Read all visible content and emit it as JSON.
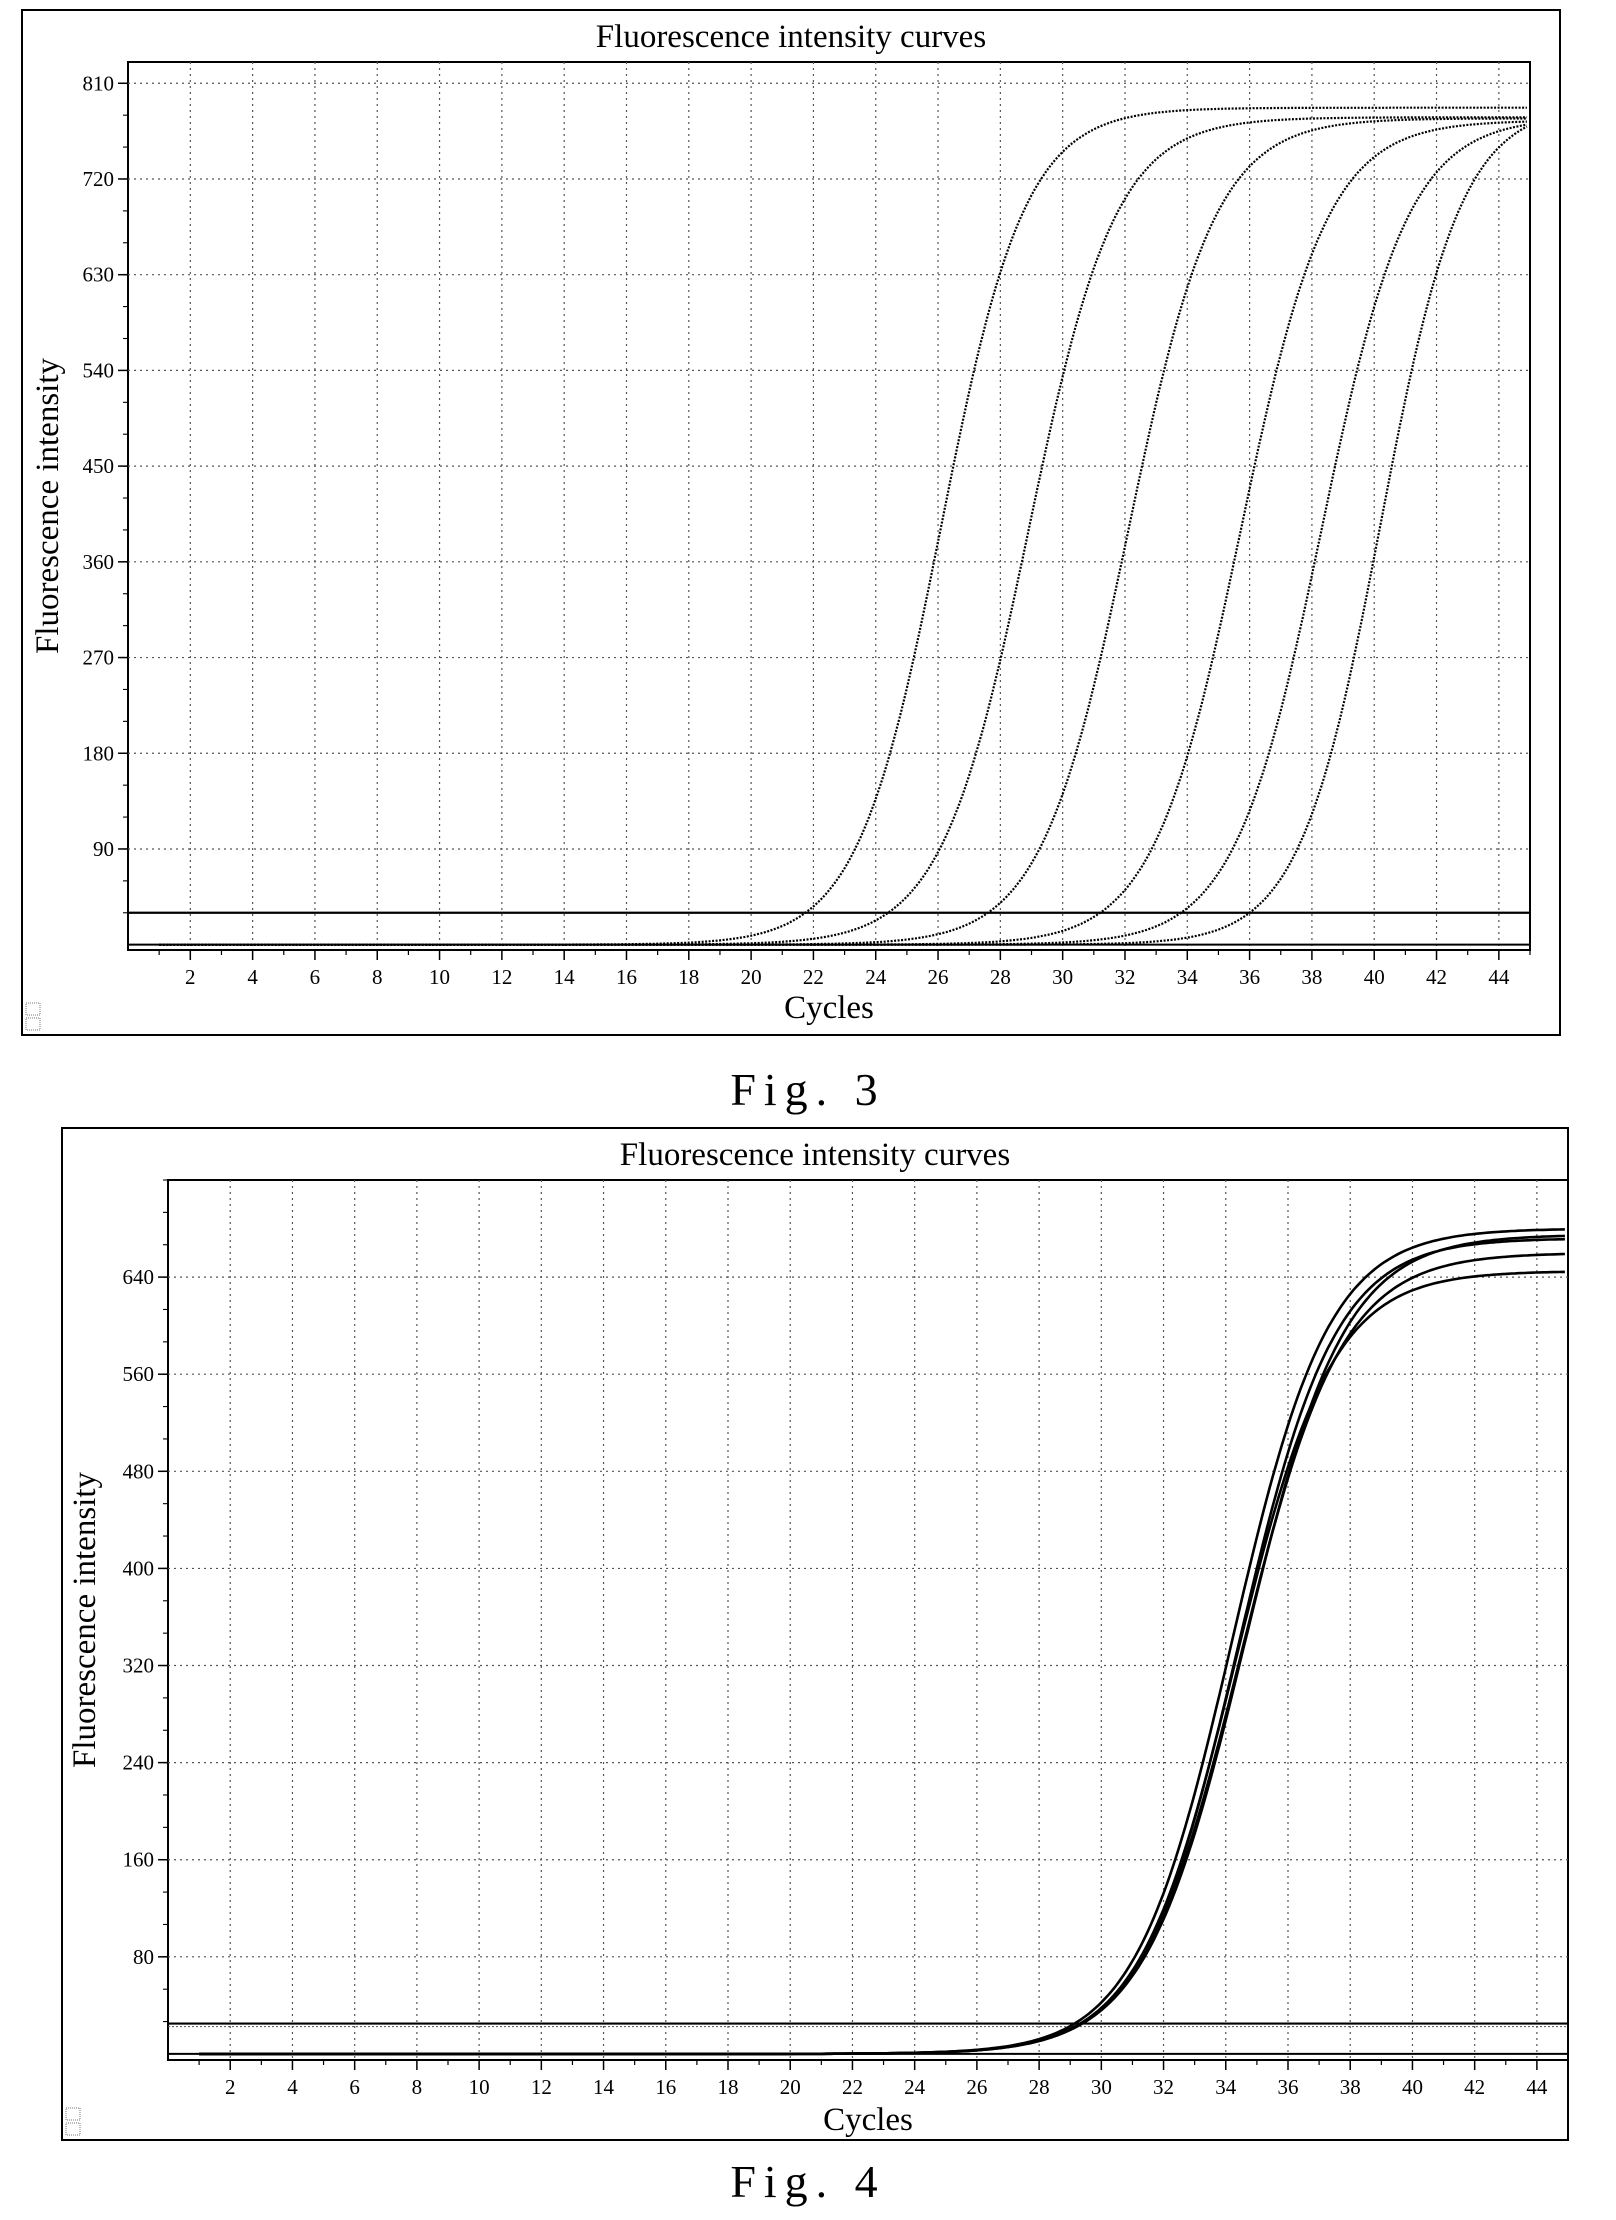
{
  "figures": [
    {
      "caption": "Fig. 3",
      "chart_data": {
        "type": "line",
        "title": "Fluorescence intensity curves",
        "xlabel": "Cycles",
        "ylabel": "Fluorescence intensity",
        "xlim": [
          0,
          45
        ],
        "ylim": [
          -5,
          830
        ],
        "x_ticks": [
          2,
          4,
          6,
          8,
          10,
          12,
          14,
          16,
          18,
          20,
          22,
          24,
          26,
          28,
          30,
          32,
          34,
          36,
          38,
          40,
          42,
          44
        ],
        "y_ticks": [
          90,
          180,
          270,
          360,
          450,
          540,
          630,
          720,
          810
        ],
        "grid": true,
        "legend": "none",
        "threshold": 30,
        "series": [
          {
            "midpoint": 26.1,
            "plateau": 787,
            "slope": 1.35,
            "start": 1
          },
          {
            "midpoint": 28.9,
            "plateau": 778,
            "slope": 1.4,
            "start": 1
          },
          {
            "midpoint": 32.1,
            "plateau": 777,
            "slope": 1.4,
            "start": 1
          },
          {
            "midpoint": 35.7,
            "plateau": 775,
            "slope": 1.4,
            "start": 1
          },
          {
            "midpoint": 38.3,
            "plateau": 778,
            "slope": 1.4,
            "start": 1
          },
          {
            "midpoint": 40.2,
            "plateau": 790,
            "slope": 1.3,
            "start": 1
          }
        ]
      }
    },
    {
      "caption": "Fig. 4",
      "chart_data": {
        "type": "line",
        "title": "Fluorescence intensity curves",
        "xlabel": "Cycles",
        "ylabel": "Fluorescence intensity",
        "xlim": [
          0,
          45
        ],
        "ylim": [
          -5,
          720
        ],
        "x_ticks": [
          2,
          4,
          6,
          8,
          10,
          12,
          14,
          16,
          18,
          20,
          22,
          24,
          26,
          28,
          30,
          32,
          34,
          36,
          38,
          40,
          42,
          44
        ],
        "y_ticks": [
          80,
          160,
          240,
          320,
          400,
          480,
          560,
          640
        ],
        "grid": true,
        "legend": "none",
        "threshold": 25,
        "series": [
          {
            "midpoint": 34.2,
            "plateau": 680,
            "slope": 1.55,
            "start": 1
          },
          {
            "midpoint": 34.4,
            "plateau": 672,
            "slope": 1.55,
            "start": 1
          },
          {
            "midpoint": 34.5,
            "plateau": 660,
            "slope": 1.6,
            "start": 1
          },
          {
            "midpoint": 34.3,
            "plateau": 645,
            "slope": 1.55,
            "start": 1
          },
          {
            "midpoint": 34.6,
            "plateau": 675,
            "slope": 1.6,
            "start": 1
          }
        ]
      }
    }
  ]
}
